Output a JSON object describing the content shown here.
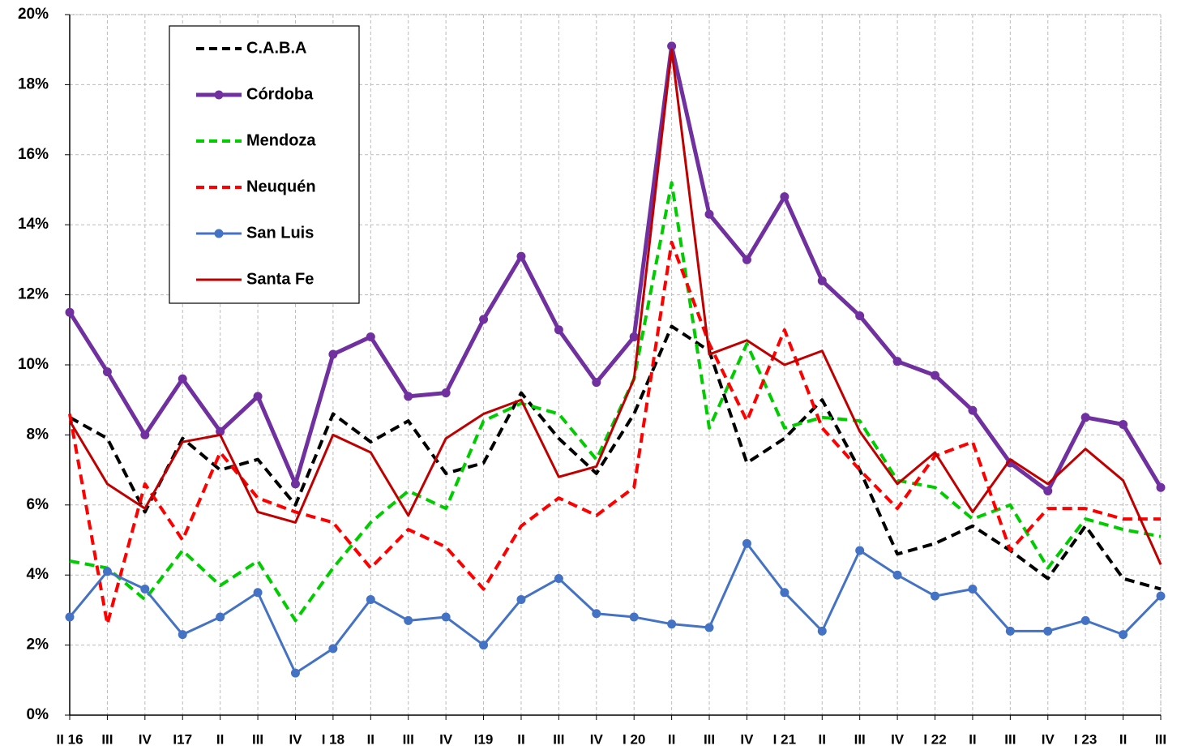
{
  "chart_data": {
    "type": "line",
    "categories": [
      "II 16",
      "III",
      "IV",
      "I17",
      "II",
      "III",
      "IV",
      "I 18",
      "II",
      "III",
      "IV",
      "I19",
      "II",
      "III",
      "IV",
      "I 20",
      "II",
      "III",
      "IV",
      "I 21",
      "II",
      "III",
      "IV",
      "I 22",
      "II",
      "III",
      "IV",
      "I 23",
      "II",
      "III"
    ],
    "series": [
      {
        "name": "C.A.B.A",
        "color": "#000000",
        "dashed": true,
        "markers": false,
        "values": [
          8.5,
          7.9,
          5.8,
          7.9,
          7.0,
          7.3,
          6.0,
          8.6,
          7.8,
          8.4,
          6.9,
          7.2,
          9.2,
          7.9,
          6.9,
          8.6,
          11.1,
          10.4,
          7.2,
          7.9,
          9.0,
          7.0,
          4.6,
          4.9,
          5.4,
          4.7,
          3.9,
          5.4,
          3.9,
          3.6
        ]
      },
      {
        "name": "Córdoba",
        "color": "#7030a0",
        "dashed": false,
        "markers": true,
        "values": [
          11.5,
          9.8,
          8.0,
          9.6,
          8.1,
          9.1,
          6.6,
          10.3,
          10.8,
          9.1,
          9.2,
          11.3,
          13.1,
          11.0,
          9.5,
          10.8,
          19.1,
          14.3,
          13.0,
          14.8,
          12.4,
          11.4,
          10.1,
          9.7,
          8.7,
          7.2,
          6.4,
          8.5,
          8.3,
          6.5
        ]
      },
      {
        "name": "Mendoza",
        "color": "#00cc00",
        "dashed": true,
        "markers": false,
        "values": [
          4.4,
          4.2,
          3.3,
          4.7,
          3.7,
          4.4,
          2.7,
          4.2,
          5.5,
          6.4,
          5.9,
          8.4,
          8.9,
          8.6,
          7.3,
          9.6,
          15.2,
          8.2,
          10.6,
          8.2,
          8.5,
          8.4,
          6.7,
          6.5,
          5.6,
          6.0,
          4.2,
          5.6,
          5.3,
          5.1
        ]
      },
      {
        "name": "Neuquén",
        "color": "#ff0000",
        "dashed": true,
        "markers": false,
        "values": [
          8.6,
          2.6,
          6.6,
          5.0,
          7.5,
          6.2,
          5.8,
          5.5,
          4.2,
          5.3,
          4.8,
          3.6,
          5.4,
          6.2,
          5.7,
          6.5,
          13.5,
          10.6,
          8.4,
          11.0,
          8.2,
          7.0,
          5.9,
          7.4,
          7.8,
          4.7,
          5.9,
          5.9,
          5.6,
          5.6
        ]
      },
      {
        "name": "San Luis",
        "color": "#4472c4",
        "dashed": false,
        "markers": true,
        "values": [
          2.8,
          4.1,
          3.6,
          2.3,
          2.8,
          3.5,
          1.2,
          1.9,
          3.3,
          2.7,
          2.8,
          2.0,
          3.3,
          3.9,
          2.9,
          2.8,
          2.6,
          2.5,
          4.9,
          3.5,
          2.4,
          4.7,
          4.0,
          3.4,
          3.6,
          2.4,
          2.4,
          2.7,
          2.3,
          3.4
        ]
      },
      {
        "name": "Santa Fe",
        "color": "#c00000",
        "dashed": false,
        "markers": false,
        "values": [
          8.4,
          6.6,
          5.9,
          7.8,
          8.0,
          5.8,
          5.5,
          8.0,
          7.5,
          5.7,
          7.9,
          8.6,
          9.0,
          6.8,
          7.1,
          9.6,
          19.0,
          10.3,
          10.7,
          10.0,
          10.4,
          8.1,
          6.6,
          7.5,
          5.8,
          7.3,
          6.6,
          7.6,
          6.7,
          4.3
        ]
      }
    ],
    "ylim": [
      0,
      20
    ],
    "yticks": [
      {
        "value": 0,
        "label": "0%"
      },
      {
        "value": 2,
        "label": "2%"
      },
      {
        "value": 4,
        "label": "4%"
      },
      {
        "value": 6,
        "label": "6%"
      },
      {
        "value": 8,
        "label": "8%"
      },
      {
        "value": 10,
        "label": "10%"
      },
      {
        "value": 12,
        "label": "12%"
      },
      {
        "value": 14,
        "label": "14%"
      },
      {
        "value": 16,
        "label": "16%"
      },
      {
        "value": 18,
        "label": "18%"
      },
      {
        "value": 20,
        "label": "20%"
      }
    ],
    "grid": true,
    "legend": "upper left"
  }
}
